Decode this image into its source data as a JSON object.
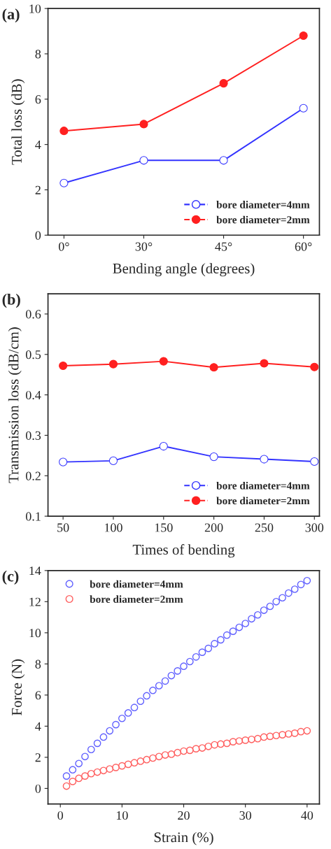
{
  "chart_data": [
    {
      "type": "line",
      "title": "(a)",
      "xlabel": "Bending angle (degrees)",
      "ylabel": "Total loss (dB)",
      "categories": [
        "0°",
        "30°",
        "45°",
        "60°"
      ],
      "ylim": [
        0,
        10
      ],
      "yticks": [
        0,
        2,
        4,
        6,
        8,
        10
      ],
      "legend": "bottom right",
      "marker": "circle",
      "grid": false,
      "series": [
        {
          "name": "bore diameter=4mm",
          "color": "#3333ff",
          "values": [
            2.3,
            3.3,
            3.3,
            5.6
          ]
        },
        {
          "name": "bore diameter=2mm",
          "color": "#ff2020",
          "values": [
            4.6,
            4.9,
            6.7,
            8.8
          ]
        }
      ]
    },
    {
      "type": "line",
      "title": "(b)",
      "xlabel": "Times of bending",
      "ylabel": "Transmission loss (dB/cm)",
      "x": [
        50,
        100,
        150,
        200,
        250,
        300
      ],
      "xlim": [
        35,
        305
      ],
      "xticks": [
        50,
        100,
        150,
        200,
        250,
        300
      ],
      "ylim": [
        0.1,
        0.65
      ],
      "yticks": [
        0.1,
        0.2,
        0.3,
        0.4,
        0.5,
        0.6
      ],
      "legend": "bottom right",
      "marker": "circle",
      "grid": false,
      "series": [
        {
          "name": "bore diameter=4mm",
          "color": "#3333ff",
          "values": [
            0.234,
            0.237,
            0.273,
            0.247,
            0.241,
            0.235
          ]
        },
        {
          "name": "bore diameter=2mm",
          "color": "#ff2020",
          "values": [
            0.472,
            0.476,
            0.483,
            0.468,
            0.478,
            0.469
          ]
        }
      ]
    },
    {
      "type": "scatter",
      "title": "(c)",
      "xlabel": "Strain (%)",
      "ylabel": "Force (N)",
      "x": [
        1,
        2,
        3,
        4,
        5,
        6,
        7,
        8,
        9,
        10,
        11,
        12,
        13,
        14,
        15,
        16,
        17,
        18,
        19,
        20,
        21,
        22,
        23,
        24,
        25,
        26,
        27,
        28,
        29,
        30,
        31,
        32,
        33,
        34,
        35,
        36,
        37,
        38,
        39,
        40
      ],
      "xlim": [
        -2,
        42
      ],
      "xticks": [
        0,
        10,
        20,
        30,
        40
      ],
      "ylim": [
        -1,
        14
      ],
      "yticks": [
        0,
        2,
        4,
        6,
        8,
        10,
        12,
        14
      ],
      "legend": "top left",
      "marker": "circle",
      "grid": false,
      "series": [
        {
          "name": "bore diameter=4mm",
          "color": "#6060ff",
          "values": [
            0.8,
            1.2,
            1.6,
            2.05,
            2.5,
            2.9,
            3.3,
            3.7,
            4.1,
            4.5,
            4.85,
            5.2,
            5.6,
            5.95,
            6.3,
            6.6,
            6.9,
            7.25,
            7.55,
            7.85,
            8.15,
            8.45,
            8.75,
            9.0,
            9.3,
            9.55,
            9.85,
            10.1,
            10.35,
            10.6,
            10.9,
            11.15,
            11.45,
            11.7,
            12.0,
            12.25,
            12.55,
            12.8,
            13.1,
            13.35
          ]
        },
        {
          "name": "bore diameter=2mm",
          "color": "#ff6060",
          "values": [
            0.15,
            0.45,
            0.65,
            0.8,
            0.95,
            1.05,
            1.15,
            1.25,
            1.35,
            1.45,
            1.55,
            1.65,
            1.75,
            1.85,
            1.95,
            2.05,
            2.15,
            2.2,
            2.3,
            2.4,
            2.45,
            2.55,
            2.6,
            2.7,
            2.8,
            2.85,
            2.9,
            3.0,
            3.05,
            3.1,
            3.15,
            3.2,
            3.3,
            3.35,
            3.4,
            3.45,
            3.5,
            3.55,
            3.65,
            3.7
          ]
        }
      ]
    }
  ]
}
